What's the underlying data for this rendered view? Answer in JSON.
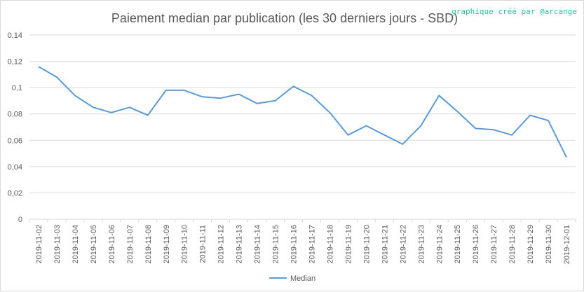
{
  "credit": "graphique créé par @arcange",
  "colors": {
    "line": "#5b9bd5",
    "grid": "#d9d9d9",
    "text": "#595959",
    "credit": "#2ebfa5"
  },
  "chart_data": {
    "type": "line",
    "title": "Paiement median par publication (les 30 derniers jours - SBD)",
    "xlabel": "",
    "ylabel": "",
    "ylim": [
      0,
      0.14
    ],
    "yticks": [
      "0",
      "0,02",
      "0,04",
      "0,06",
      "0,08",
      "0,1",
      "0,12",
      "0,14"
    ],
    "ytick_values": [
      0,
      0.02,
      0.04,
      0.06,
      0.08,
      0.1,
      0.12,
      0.14
    ],
    "grid": true,
    "legend_position": "bottom",
    "categories": [
      "2019-11-02",
      "2019-11-03",
      "2019-11-04",
      "2019-11-05",
      "2019-11-06",
      "2019-11-07",
      "2019-11-08",
      "2019-11-09",
      "2019-11-10",
      "2019-11-11",
      "2019-11-12",
      "2019-11-13",
      "2019-11-14",
      "2019-11-15",
      "2019-11-16",
      "2019-11-17",
      "2019-11-18",
      "2019-11-19",
      "2019-11-20",
      "2019-11-21",
      "2019-11-22",
      "2019-11-23",
      "2019-11-24",
      "2019-11-25",
      "2019-11-26",
      "2019-11-27",
      "2019-11-28",
      "2019-11-29",
      "2019-11-30",
      "2019-12-01"
    ],
    "series": [
      {
        "name": "Median",
        "values": [
          0.116,
          0.108,
          0.094,
          0.085,
          0.081,
          0.085,
          0.079,
          0.098,
          0.098,
          0.093,
          0.092,
          0.095,
          0.088,
          0.09,
          0.101,
          0.094,
          0.081,
          0.064,
          0.071,
          0.064,
          0.057,
          0.071,
          0.094,
          0.082,
          0.069,
          0.068,
          0.064,
          0.079,
          0.075,
          0.047
        ]
      }
    ]
  }
}
